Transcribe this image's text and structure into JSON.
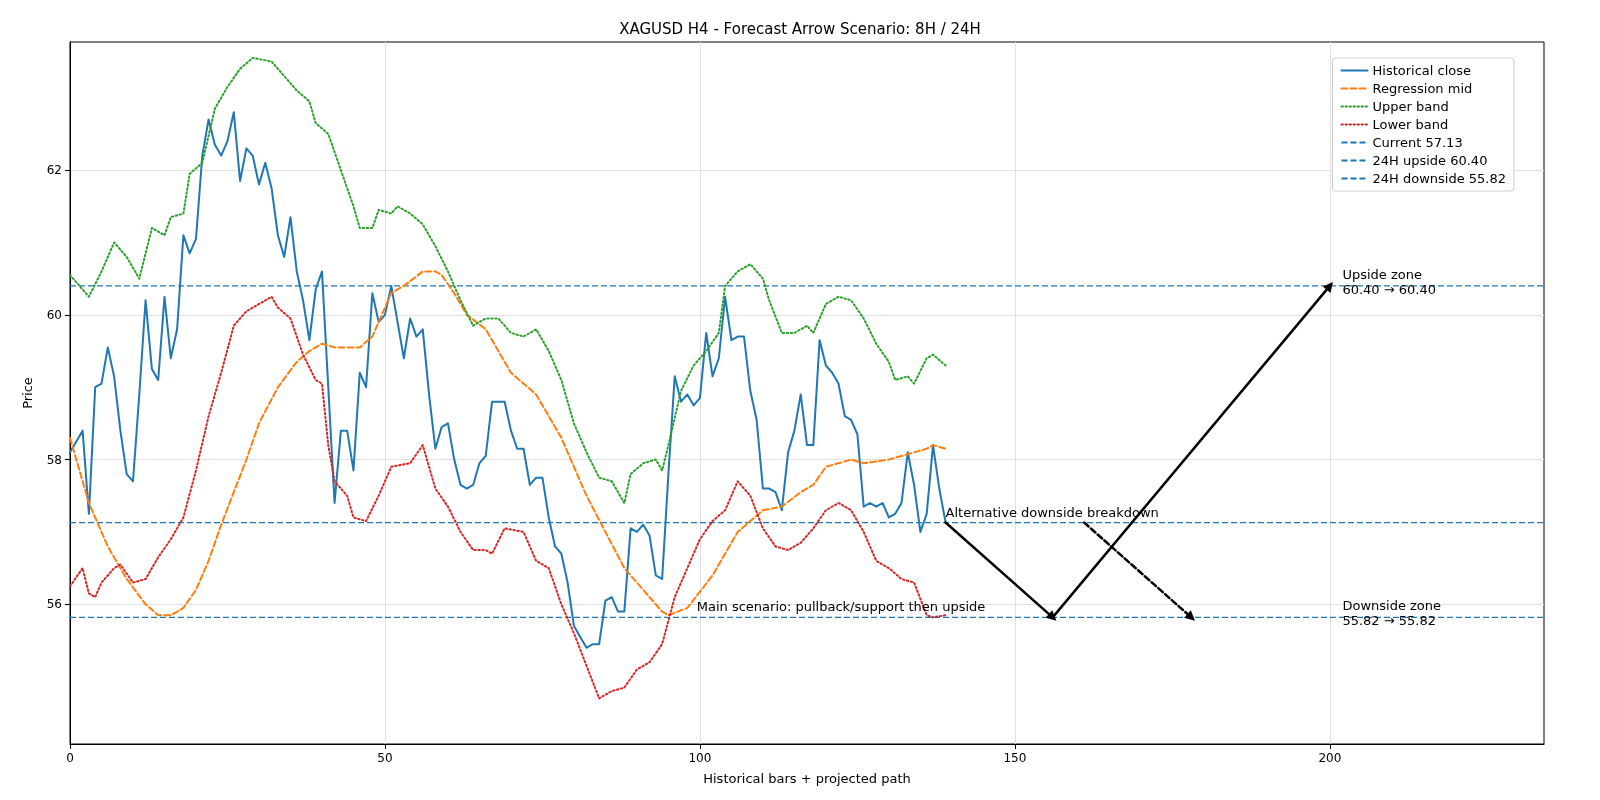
{
  "chart_data": {
    "type": "line",
    "title": "XAGUSD H4 - Forecast Arrow Scenario: 8H / 24H",
    "xlabel": "Historical bars + projected path",
    "ylabel": "Price",
    "xlim": [
      0,
      234
    ],
    "ylim": [
      54.07,
      63.77
    ],
    "xticks": [
      0,
      50,
      100,
      150,
      200
    ],
    "yticks": [
      56,
      58,
      60,
      62
    ],
    "grid": true,
    "legend": "top right",
    "marker": "none",
    "series": [
      {
        "name": "Historical close",
        "color": "#1f77b4",
        "line_style": "solid",
        "x": [
          0,
          1,
          2,
          3,
          4,
          5,
          6,
          7,
          8,
          9,
          10,
          11,
          12,
          13,
          14,
          15,
          16,
          17,
          18,
          19,
          20,
          21,
          22,
          23,
          24,
          25,
          26,
          27,
          28,
          29,
          30,
          31,
          32,
          33,
          34,
          35,
          36,
          37,
          38,
          39,
          40,
          41,
          42,
          43,
          44,
          45,
          46,
          47,
          48,
          49,
          50,
          51,
          52,
          53,
          54,
          55,
          56,
          57,
          58,
          59,
          60,
          61,
          62,
          63,
          64,
          65,
          66,
          67,
          68,
          69,
          70,
          71,
          72,
          73,
          74,
          75,
          76,
          77,
          78,
          79,
          80,
          81,
          82,
          83,
          84,
          85,
          86,
          87,
          88,
          89,
          90,
          91,
          92,
          93,
          94,
          95,
          96,
          97,
          98,
          99,
          100,
          101,
          102,
          103,
          104,
          105,
          106,
          107,
          108,
          109,
          110,
          111,
          112,
          113,
          114,
          115,
          116,
          117,
          118,
          119,
          120,
          121,
          122,
          123,
          124,
          125,
          126,
          127,
          128,
          129,
          130,
          131,
          132,
          133,
          134,
          135,
          136,
          137,
          138,
          139
        ],
        "values": [
          58.1,
          58.25,
          58.4,
          57.25,
          59.0,
          59.05,
          59.55,
          59.15,
          58.4,
          57.8,
          57.7,
          58.9,
          60.2,
          59.25,
          59.1,
          60.25,
          59.4,
          59.8,
          61.1,
          60.85,
          61.05,
          62.2,
          62.7,
          62.35,
          62.2,
          62.4,
          62.8,
          61.85,
          62.3,
          62.2,
          61.8,
          62.1,
          61.75,
          61.1,
          60.8,
          61.35,
          60.6,
          60.2,
          59.65,
          60.35,
          60.6,
          59.0,
          57.4,
          58.4,
          58.4,
          57.85,
          59.2,
          59.0,
          60.3,
          59.9,
          60.0,
          60.4,
          59.9,
          59.4,
          59.95,
          59.7,
          59.8,
          58.9,
          58.15,
          58.45,
          58.5,
          58.0,
          57.65,
          57.6,
          57.65,
          57.95,
          58.05,
          58.8,
          58.8,
          58.8,
          58.4,
          58.15,
          58.15,
          57.65,
          57.75,
          57.75,
          57.2,
          56.8,
          56.7,
          56.3,
          55.7,
          55.55,
          55.4,
          55.45,
          55.45,
          56.05,
          56.1,
          55.9,
          55.9,
          57.05,
          57.0,
          57.1,
          56.95,
          56.4,
          56.35,
          57.8,
          59.15,
          58.8,
          58.9,
          58.75,
          58.85,
          59.75,
          59.15,
          59.4,
          60.25,
          59.65,
          59.7,
          59.7,
          58.95,
          58.55,
          57.6,
          57.6,
          57.55,
          57.3,
          58.1,
          58.4,
          58.9,
          58.2,
          58.2,
          59.65,
          59.3,
          59.2,
          59.05,
          58.6,
          58.55,
          58.35,
          57.35,
          57.4,
          57.35,
          57.4,
          57.2,
          57.25,
          57.4,
          58.1,
          57.65,
          57.0,
          57.25,
          58.2,
          57.6,
          57.13
        ]
      },
      {
        "name": "Regression mid",
        "color": "#ff7f0e",
        "line_style": "dashed",
        "x": [
          0,
          3,
          6,
          9,
          12,
          14,
          16,
          18,
          20,
          22,
          24,
          26,
          28,
          30,
          33,
          36,
          38,
          40,
          42,
          44,
          46,
          48,
          50,
          51,
          53,
          56,
          58,
          59,
          61,
          63,
          66,
          70,
          74,
          78,
          82,
          85,
          88,
          91,
          94,
          95,
          98,
          102,
          106,
          110,
          113,
          116,
          118,
          120,
          124,
          126,
          130,
          134,
          136,
          137,
          139
        ],
        "values": [
          58.3,
          57.4,
          56.8,
          56.35,
          56.0,
          55.85,
          55.85,
          55.95,
          56.2,
          56.6,
          57.1,
          57.55,
          58.0,
          58.5,
          59.0,
          59.35,
          59.5,
          59.6,
          59.55,
          59.55,
          59.55,
          59.7,
          60.1,
          60.3,
          60.4,
          60.6,
          60.6,
          60.55,
          60.3,
          60.0,
          59.8,
          59.2,
          58.9,
          58.3,
          57.5,
          57.0,
          56.5,
          56.2,
          55.9,
          55.85,
          55.95,
          56.4,
          57.0,
          57.3,
          57.35,
          57.55,
          57.65,
          57.9,
          58.0,
          57.95,
          58.0,
          58.1,
          58.15,
          58.2,
          58.15
        ]
      },
      {
        "name": "Upper band",
        "color": "#2ca02c",
        "line_style": "dotted",
        "x": [
          0,
          3,
          5,
          7,
          9,
          11,
          13,
          15,
          16,
          18,
          19,
          21,
          23,
          25,
          27,
          29,
          32,
          34,
          36,
          38,
          39,
          41,
          43,
          45,
          46,
          48,
          49,
          51,
          52,
          54,
          56,
          58,
          60,
          62,
          64,
          66,
          68,
          70,
          72,
          74,
          76,
          78,
          80,
          82,
          84,
          86,
          88,
          89,
          91,
          93,
          94,
          95,
          97,
          99,
          101,
          103,
          104,
          106,
          108,
          110,
          111,
          113,
          115,
          117,
          118,
          120,
          122,
          124,
          126,
          128,
          130,
          131,
          133,
          134,
          136,
          137,
          139
        ],
        "values": [
          60.55,
          60.25,
          60.6,
          61.0,
          60.8,
          60.5,
          61.2,
          61.1,
          61.35,
          61.4,
          61.95,
          62.1,
          62.85,
          63.15,
          63.4,
          63.55,
          63.5,
          63.3,
          63.1,
          62.95,
          62.65,
          62.5,
          62.0,
          61.5,
          61.2,
          61.2,
          61.45,
          61.4,
          61.5,
          61.4,
          61.25,
          60.95,
          60.6,
          60.2,
          59.85,
          59.95,
          59.95,
          59.75,
          59.7,
          59.8,
          59.5,
          59.1,
          58.5,
          58.1,
          57.75,
          57.7,
          57.4,
          57.8,
          57.95,
          58.0,
          57.85,
          58.2,
          58.95,
          59.3,
          59.5,
          59.75,
          60.4,
          60.6,
          60.7,
          60.5,
          60.2,
          59.75,
          59.75,
          59.85,
          59.75,
          60.15,
          60.25,
          60.2,
          59.95,
          59.6,
          59.35,
          59.1,
          59.15,
          59.05,
          59.4,
          59.45,
          59.3
        ]
      },
      {
        "name": "Lower band",
        "color": "#d62728",
        "line_style": "dotted",
        "x": [
          0,
          2,
          3,
          4,
          5,
          7,
          8,
          10,
          12,
          14,
          16,
          18,
          20,
          22,
          24,
          26,
          28,
          30,
          32,
          33,
          35,
          37,
          39,
          40,
          41,
          42,
          44,
          45,
          47,
          49,
          51,
          54,
          56,
          58,
          60,
          62,
          64,
          66,
          67,
          69,
          72,
          74,
          76,
          78,
          80,
          82,
          84,
          86,
          88,
          90,
          92,
          94,
          96,
          98,
          100,
          102,
          104,
          106,
          108,
          110,
          112,
          114,
          116,
          118,
          120,
          122,
          124,
          126,
          128,
          130,
          132,
          134,
          136,
          137,
          139
        ],
        "values": [
          56.25,
          56.5,
          56.15,
          56.1,
          56.3,
          56.5,
          56.55,
          56.3,
          56.35,
          56.65,
          56.9,
          57.2,
          57.85,
          58.6,
          59.2,
          59.85,
          60.05,
          60.15,
          60.25,
          60.1,
          59.95,
          59.45,
          59.1,
          59.05,
          58.2,
          57.7,
          57.5,
          57.2,
          57.15,
          57.5,
          57.9,
          57.95,
          58.2,
          57.6,
          57.35,
          57.0,
          56.75,
          56.75,
          56.7,
          57.05,
          57.0,
          56.6,
          56.5,
          56.0,
          55.6,
          55.15,
          54.7,
          54.8,
          54.85,
          55.1,
          55.2,
          55.45,
          56.1,
          56.5,
          56.9,
          57.15,
          57.3,
          57.7,
          57.5,
          57.05,
          56.8,
          56.75,
          56.85,
          57.05,
          57.3,
          57.4,
          57.3,
          57.0,
          56.6,
          56.5,
          56.35,
          56.3,
          55.85,
          55.82,
          55.85
        ]
      },
      {
        "color": "#000000",
        "line_style": "solid",
        "marker": "triangle",
        "x": [
          139,
          156,
          200
        ],
        "values": [
          57.13,
          55.82,
          60.4
        ]
      },
      {
        "color": "#000000",
        "line_style": "dashed",
        "marker": "triangle",
        "x": [
          161,
          178
        ],
        "values": [
          57.13,
          55.82
        ]
      }
    ],
    "ref_lines": [
      {
        "axis": "y",
        "value": 57.13,
        "label": "Current 57.13",
        "color": "#1f77b4",
        "line_style": "dashed"
      },
      {
        "axis": "y",
        "value": 60.4,
        "label": "24H upside 60.40",
        "color": "#1f77b4",
        "line_style": "dashed"
      },
      {
        "axis": "y",
        "value": 55.82,
        "label": "24H downside 55.82",
        "color": "#1f77b4",
        "line_style": "dashed"
      }
    ],
    "annotations": [
      {
        "text": "Upside zone\n60.40 → 60.40",
        "x": 202,
        "y": 60.4
      },
      {
        "text": "Downside zone\n55.82 → 55.82",
        "x": 202,
        "y": 55.82
      },
      {
        "text": "Alternative downside breakdown",
        "x": 139,
        "y": 57.13
      },
      {
        "text": "Main scenario: pullback/support then upside",
        "x": 99.5,
        "y": 55.82
      }
    ]
  }
}
